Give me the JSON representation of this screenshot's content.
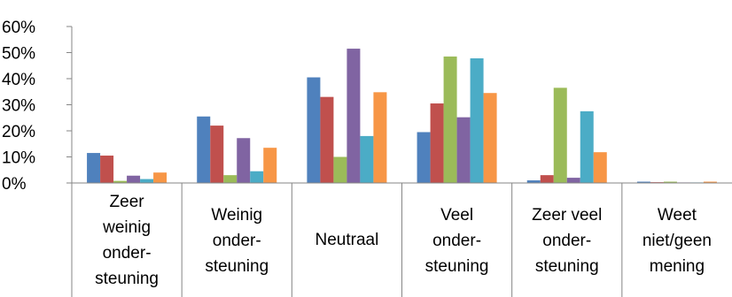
{
  "chart_data": {
    "type": "bar",
    "categories": [
      "Zeer weinig ondersteuning",
      "Weinig ondersteuning",
      "Neutraal",
      "Veel ondersteuning",
      "Zeer veel ondersteuning",
      "Weet niet/geen mening"
    ],
    "category_label_lines": [
      [
        "Zeer",
        "weinig",
        "onder-",
        "steuning"
      ],
      [
        "Weinig",
        "onder-",
        "steuning"
      ],
      [
        "Neutraal"
      ],
      [
        "Veel",
        "onder-",
        "steuning"
      ],
      [
        "Zeer veel",
        "onder-",
        "steuning"
      ],
      [
        "Weet",
        "niet/geen",
        "mening"
      ]
    ],
    "series": [
      {
        "color": "#4F81BD",
        "values": [
          11.5,
          25.5,
          40.5,
          19.5,
          1.0,
          0.5
        ]
      },
      {
        "color": "#C0504D",
        "values": [
          10.5,
          22.0,
          33.0,
          30.5,
          3.0,
          0.3
        ]
      },
      {
        "color": "#9BBB59",
        "values": [
          0.8,
          3.0,
          10.0,
          48.5,
          36.5,
          0.5
        ]
      },
      {
        "color": "#8064A2",
        "values": [
          2.8,
          17.2,
          51.5,
          25.2,
          2.0,
          0.2
        ]
      },
      {
        "color": "#4BACC6",
        "values": [
          1.5,
          4.5,
          18.0,
          47.8,
          27.5,
          0.2
        ]
      },
      {
        "color": "#F79646",
        "values": [
          4.0,
          13.5,
          34.8,
          34.5,
          11.8,
          0.5
        ]
      }
    ],
    "y_ticks": [
      "0%",
      "10%",
      "20%",
      "30%",
      "40%",
      "50%",
      "60%"
    ],
    "ylim": [
      0,
      60
    ],
    "grid": false,
    "legend": "none",
    "title": "",
    "xlabel": "",
    "ylabel": ""
  }
}
